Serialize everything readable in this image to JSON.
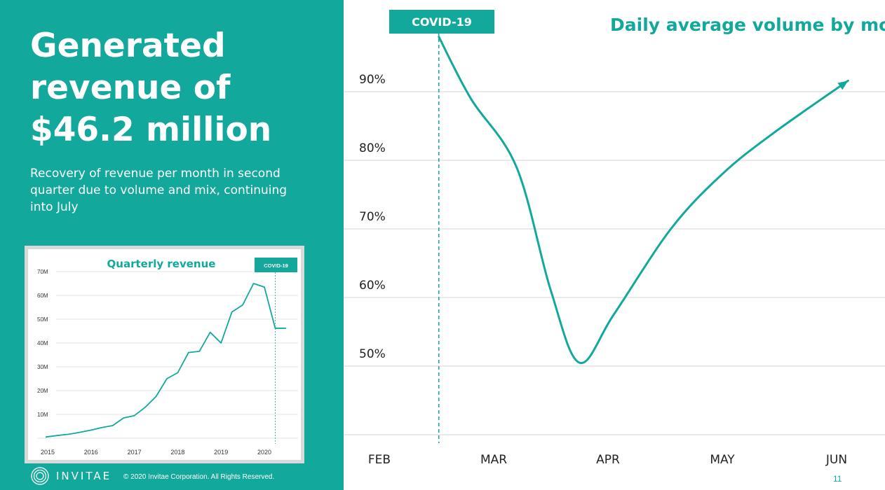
{
  "headline": "Generated revenue of $46.2 million",
  "subtext": "Recovery of revenue per month in second quarter due to volume and mix, continuing into July",
  "footer": {
    "brand": "INVITAE",
    "copyright": "© 2020 Invitae Corporation. All Rights Reserved.",
    "page_number": "11"
  },
  "colors": {
    "accent": "#12a99c",
    "grid": "#d6d6d6",
    "text": "#222222",
    "frame": "#d9d9d9"
  },
  "chart_data": [
    {
      "type": "line",
      "title": "Daily average volume by month",
      "annotation": "COVID-19",
      "categories": [
        "FEB",
        "MAR",
        "APR",
        "MAY",
        "JUN"
      ],
      "y_tick_labels": [
        "90%",
        "80%",
        "70%",
        "60%",
        "50%"
      ],
      "y_ticks": [
        90,
        80,
        70,
        60,
        50
      ],
      "ylim": [
        40,
        100
      ],
      "annotation_x": 1.52,
      "series": [
        {
          "x": [
            1.52,
            1.8,
            2.2,
            2.5,
            2.75,
            3.05,
            3.55,
            4.0,
            4.45,
            5.1
          ],
          "values": [
            98,
            89,
            79,
            61,
            50.5,
            57.5,
            70,
            78,
            84,
            91.6
          ]
        }
      ],
      "arrow_at_end": true,
      "grid": true,
      "legend": "none"
    },
    {
      "type": "line",
      "title": "Quarterly revenue",
      "annotation": "COVID-19",
      "x_tick_labels": [
        "2015",
        "2016",
        "2017",
        "2018",
        "2019",
        "2020"
      ],
      "x_ticks": [
        2015,
        2016,
        2017,
        2018,
        2019,
        2020
      ],
      "y_tick_labels": [
        "70M",
        "60M",
        "50M",
        "40M",
        "30M",
        "20M",
        "10M"
      ],
      "y_ticks": [
        70,
        60,
        50,
        40,
        30,
        20,
        10
      ],
      "ylim": [
        0,
        71
      ],
      "annotation_x": 2020.25,
      "series": [
        {
          "x": [
            2014.95,
            2015.25,
            2015.5,
            2015.75,
            2016.0,
            2016.25,
            2016.5,
            2016.75,
            2017.0,
            2017.25,
            2017.5,
            2017.75,
            2018.0,
            2018.25,
            2018.5,
            2018.75,
            2019.0,
            2019.25,
            2019.5,
            2019.75,
            2020.0,
            2020.25,
            2020.5
          ],
          "values": [
            0.5,
            1.2,
            1.7,
            2.5,
            3.4,
            4.5,
            5.3,
            8.5,
            9.5,
            13,
            17.5,
            25,
            27.5,
            36,
            36.5,
            44.5,
            40,
            53,
            56,
            65,
            63.5,
            46.2,
            46.2
          ]
        }
      ],
      "grid": true,
      "legend": "none"
    }
  ]
}
